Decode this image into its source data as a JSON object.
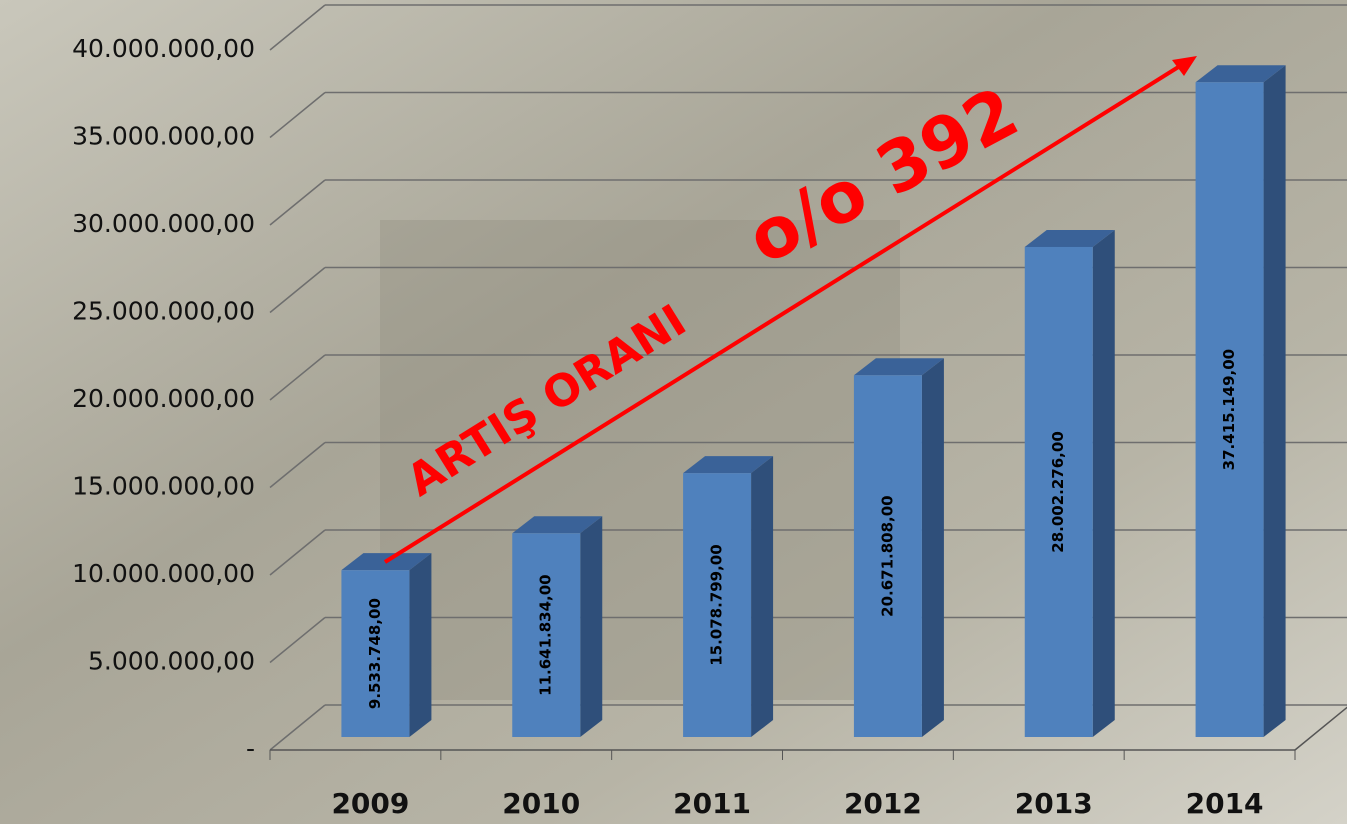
{
  "chart_data": {
    "type": "bar3d",
    "categories": [
      "2009",
      "2010",
      "2011",
      "2012",
      "2013",
      "2014"
    ],
    "values": [
      9533748,
      11641834,
      15078799,
      20671808,
      28002276,
      37415149
    ],
    "value_labels": [
      "9.533.748,00",
      "11.641.834,00",
      "15.078.799,00",
      "20.671.808,00",
      "28.002.276,00",
      "37.415.149,00"
    ],
    "color": "#4f81bd",
    "ylim": [
      0,
      40000000
    ],
    "yticks": [
      {
        "value": 0,
        "label": "-"
      },
      {
        "value": 5000000,
        "label": "5.000.000,00"
      },
      {
        "value": 10000000,
        "label": "10.000.000,00"
      },
      {
        "value": 15000000,
        "label": "15.000.000,00"
      },
      {
        "value": 20000000,
        "label": "20.000.000,00"
      },
      {
        "value": 25000000,
        "label": "25.000.000,00"
      },
      {
        "value": 30000000,
        "label": "30.000.000,00"
      },
      {
        "value": 35000000,
        "label": "35.000.000,00"
      },
      {
        "value": 40000000,
        "label": "40.000.000,00"
      }
    ],
    "grid": true,
    "annotations": [
      "ARTIŞ ORANI",
      "o/o 392"
    ]
  }
}
